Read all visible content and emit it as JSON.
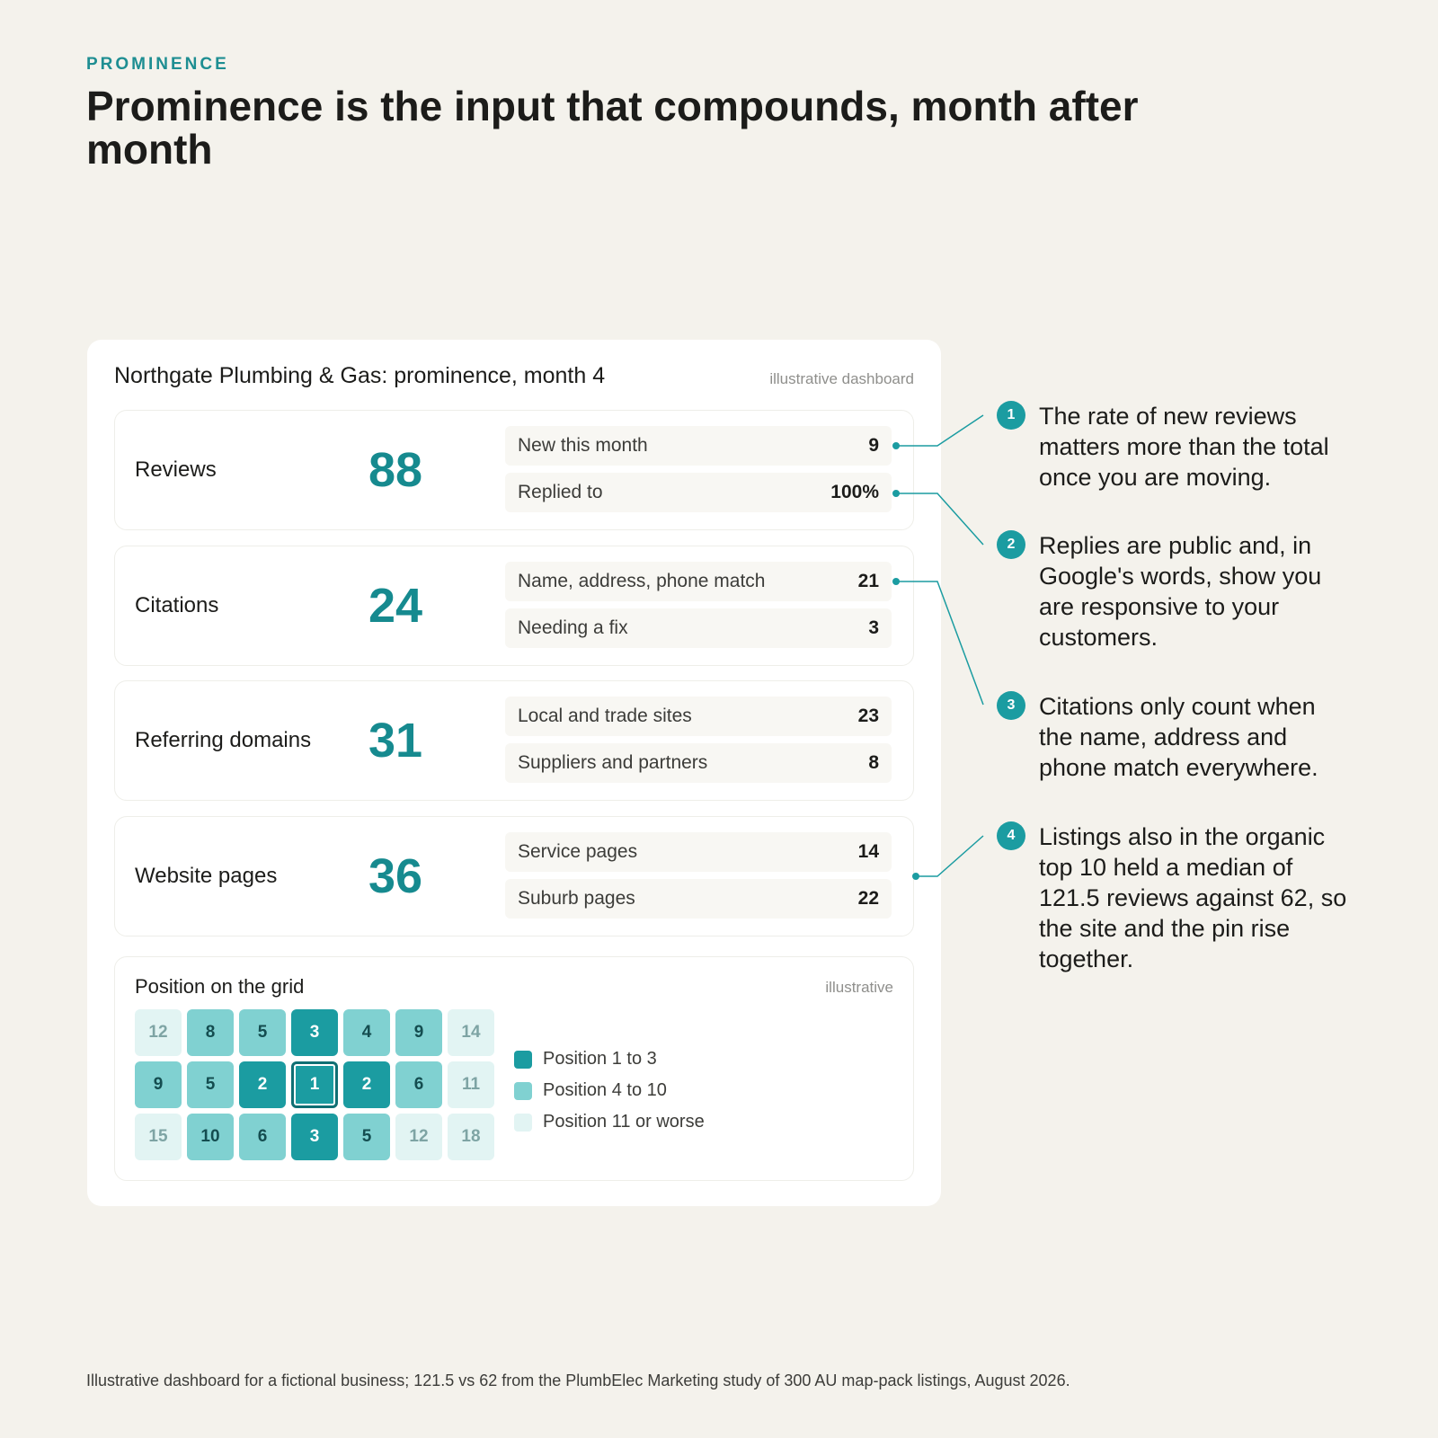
{
  "header": {
    "eyebrow": "PROMINENCE",
    "headline": "Prominence is the input that compounds, month after month"
  },
  "dashboard": {
    "title": "Northgate Plumbing & Gas: prominence, month 4",
    "note": "illustrative dashboard",
    "metrics": [
      {
        "label": "Reviews",
        "value": "88",
        "subs": [
          {
            "label": "New this month",
            "value": "9"
          },
          {
            "label": "Replied to",
            "value": "100%"
          }
        ]
      },
      {
        "label": "Citations",
        "value": "24",
        "subs": [
          {
            "label": "Name, address, phone match",
            "value": "21"
          },
          {
            "label": "Needing a fix",
            "value": "3"
          }
        ]
      },
      {
        "label": "Referring domains",
        "value": "31",
        "subs": [
          {
            "label": "Local and trade sites",
            "value": "23"
          },
          {
            "label": "Suppliers and partners",
            "value": "8"
          }
        ]
      },
      {
        "label": "Website pages",
        "value": "36",
        "subs": [
          {
            "label": "Service pages",
            "value": "14"
          },
          {
            "label": "Suburb pages",
            "value": "22"
          }
        ]
      }
    ],
    "grid": {
      "title": "Position on the grid",
      "note": "illustrative",
      "rows": [
        [
          "12",
          "8",
          "5",
          "3",
          "4",
          "9",
          "14"
        ],
        [
          "9",
          "5",
          "2",
          "1",
          "2",
          "6",
          "11"
        ],
        [
          "15",
          "10",
          "6",
          "3",
          "5",
          "12",
          "18"
        ]
      ],
      "highlight_cell": "row 2, column 4",
      "legend": [
        {
          "label": "Position 1 to 3",
          "color": "#1b9ca1"
        },
        {
          "label": "Position 4 to 10",
          "color": "#80d1d1"
        },
        {
          "label": "Position 11 or worse",
          "color": "#e2f4f3"
        }
      ]
    }
  },
  "callouts": [
    {
      "number": "1",
      "text": "The rate of new reviews matters more than the total once you are moving."
    },
    {
      "number": "2",
      "text": "Replies are public and, in Google's words, show you are responsive to your customers."
    },
    {
      "number": "3",
      "text": "Citations only count when the name, address and phone match everywhere."
    },
    {
      "number": "4",
      "text": "Listings also in the organic top 10 held a median of 121.5 reviews against 62, so the site and the pin rise together."
    }
  ],
  "footnote": "Illustrative dashboard for a fictional business; 121.5 vs 62 from the PlumbElec Marketing study of 300 AU map-pack listings, August 2026.",
  "colors": {
    "accent": "#1b9ca1",
    "background": "#f4f2ec"
  }
}
